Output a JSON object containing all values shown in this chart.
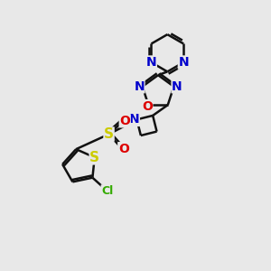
{
  "background_color": "#e8e8e8",
  "atom_colors": {
    "N": "#0000cc",
    "O": "#dd0000",
    "S": "#cccc00",
    "Cl": "#33aa00"
  },
  "bond_color": "#111111",
  "bond_width": 1.8,
  "font_size": 10,
  "fig_size": [
    3.0,
    3.0
  ],
  "dpi": 100
}
